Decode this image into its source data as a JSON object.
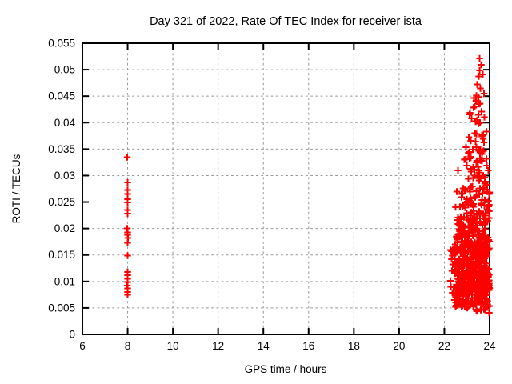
{
  "chart_data": {
    "type": "scatter",
    "title": "Day 321 of 2022, Rate Of TEC Index for receiver ista",
    "xlabel": "GPS time / hours",
    "ylabel": "ROTI / TECUs",
    "xlim": [
      6,
      24
    ],
    "ylim": [
      0,
      0.055
    ],
    "xticks": {
      "values": [
        6,
        8,
        10,
        12,
        14,
        16,
        18,
        20,
        22,
        24
      ],
      "labels": [
        "6",
        "8",
        "10",
        "12",
        "14",
        "16",
        "18",
        "20",
        "22",
        "24"
      ]
    },
    "yticks": {
      "values": [
        0,
        0.005,
        0.01,
        0.015,
        0.02,
        0.025,
        0.03,
        0.035,
        0.04,
        0.045,
        0.05,
        0.055
      ],
      "labels": [
        "0",
        "0.005",
        "0.01",
        "0.015",
        "0.02",
        "0.025",
        "0.03",
        "0.035",
        "0.04",
        "0.045",
        "0.05",
        "0.055"
      ]
    },
    "grid": true,
    "legend": "none",
    "colors": {
      "marker": "#ff0000",
      "grid": "#989898",
      "border": "#000000",
      "background": "#ffffff",
      "text": "#000000"
    },
    "marker": {
      "shape": "plus",
      "arm": 4.2,
      "stroke_width": 2
    },
    "series": [
      {
        "name": "ROTI",
        "color": "#ff0000",
        "points": [
          [
            7.98,
            0.0335
          ],
          [
            8.0,
            0.0287
          ],
          [
            7.99,
            0.0273
          ],
          [
            8.0,
            0.0265
          ],
          [
            8.0,
            0.0255
          ],
          [
            7.99,
            0.0249
          ],
          [
            8.0,
            0.0235
          ],
          [
            8.0,
            0.0228
          ],
          [
            7.98,
            0.02
          ],
          [
            8.0,
            0.0193
          ],
          [
            7.99,
            0.0188
          ],
          [
            8.01,
            0.0182
          ],
          [
            7.99,
            0.0173
          ],
          [
            8.0,
            0.0149
          ],
          [
            8.0,
            0.0118
          ],
          [
            7.99,
            0.0112
          ],
          [
            8.0,
            0.0105
          ],
          [
            8.0,
            0.0099
          ],
          [
            7.98,
            0.0092
          ],
          [
            8.0,
            0.0087
          ],
          [
            7.99,
            0.008
          ],
          [
            8.0,
            0.0075
          ],
          [
            23.56,
            0.0521
          ],
          [
            23.63,
            0.0509
          ],
          [
            23.55,
            0.0499
          ],
          [
            23.7,
            0.0491
          ],
          [
            23.52,
            0.0487
          ],
          [
            23.45,
            0.0472
          ],
          [
            23.6,
            0.0465
          ],
          [
            23.75,
            0.0455
          ],
          [
            23.5,
            0.0448
          ],
          [
            23.42,
            0.0442
          ],
          [
            23.58,
            0.0436
          ],
          [
            23.3,
            0.0428
          ],
          [
            23.65,
            0.0421
          ],
          [
            23.5,
            0.0415
          ],
          [
            23.2,
            0.0408
          ],
          [
            23.38,
            0.0402
          ],
          [
            22.42,
            0.0077
          ],
          [
            22.45,
            0.0065
          ],
          [
            23.35,
            0.03
          ],
          [
            23.95,
            0.031
          ],
          [
            23.9,
            0.027
          ],
          [
            22.55,
            0.027
          ],
          [
            22.5,
            0.024
          ],
          [
            22.6,
            0.031
          ]
        ],
        "dense_bands": [
          {
            "x": [
              23.1,
              23.8
            ],
            "y": [
              0.04,
              0.0455
            ],
            "count": 10
          },
          {
            "x": [
              22.95,
              23.9
            ],
            "y": [
              0.035,
              0.04
            ],
            "count": 16
          },
          {
            "x": [
              22.75,
              23.95
            ],
            "y": [
              0.028,
              0.035
            ],
            "count": 42
          },
          {
            "x": [
              22.6,
              24.0
            ],
            "y": [
              0.022,
              0.028
            ],
            "count": 65
          },
          {
            "x": [
              22.5,
              24.0
            ],
            "y": [
              0.017,
              0.022
            ],
            "count": 105
          },
          {
            "x": [
              22.4,
              24.0
            ],
            "y": [
              0.012,
              0.017
            ],
            "count": 170
          },
          {
            "x": [
              22.45,
              24.0
            ],
            "y": [
              0.008,
              0.012
            ],
            "count": 190
          },
          {
            "x": [
              22.5,
              24.0
            ],
            "y": [
              0.005,
              0.008
            ],
            "count": 90
          },
          {
            "x": [
              23.3,
              24.0
            ],
            "y": [
              0.004,
              0.005
            ],
            "count": 8
          },
          {
            "x": [
              22.25,
              22.5
            ],
            "y": [
              0.006,
              0.016
            ],
            "count": 12
          }
        ],
        "seed": 2022321
      }
    ]
  }
}
